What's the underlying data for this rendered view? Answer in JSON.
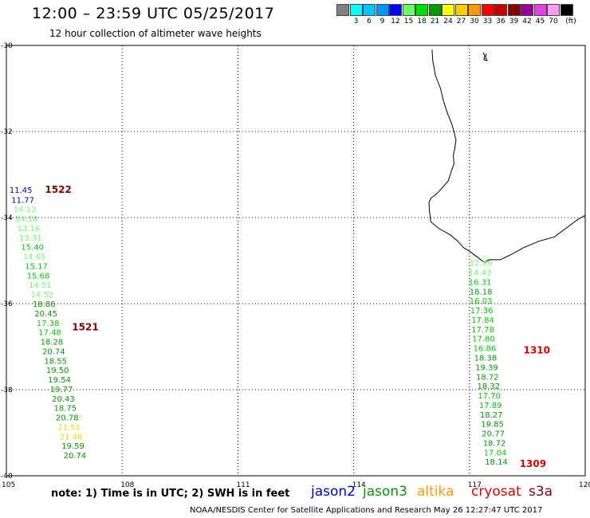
{
  "header": {
    "title": "12:00 – 23:59 UTC 05/25/2017",
    "subtitle": "12 hour collection of altimeter wave heights"
  },
  "legend": {
    "unit": "(ft)",
    "items": [
      {
        "label": "",
        "color": "#808080"
      },
      {
        "label": "3",
        "color": "#00ffff"
      },
      {
        "label": "6",
        "color": "#00c8ff"
      },
      {
        "label": "9",
        "color": "#0096ff"
      },
      {
        "label": "12",
        "color": "#0000ff"
      },
      {
        "label": "15",
        "color": "#66ff66"
      },
      {
        "label": "18",
        "color": "#00dd00"
      },
      {
        "label": "21",
        "color": "#009900"
      },
      {
        "label": "24",
        "color": "#ffff00"
      },
      {
        "label": "27",
        "color": "#ffcc00"
      },
      {
        "label": "30",
        "color": "#ff9900"
      },
      {
        "label": "33",
        "color": "#ff0000"
      },
      {
        "label": "36",
        "color": "#cc0000"
      },
      {
        "label": "39",
        "color": "#880000"
      },
      {
        "label": "42",
        "color": "#990099"
      },
      {
        "label": "45",
        "color": "#dd44dd"
      },
      {
        "label": "70",
        "color": "#ff99ff"
      },
      {
        "label": "",
        "color": "#000000"
      }
    ]
  },
  "axes": {
    "lon_labels": [
      "105",
      "108",
      "111",
      "114",
      "117",
      "120"
    ],
    "lat_labels": [
      "-30",
      "-32",
      "-34",
      "-36",
      "-38",
      "-40"
    ]
  },
  "tracks": [
    {
      "name": "west-track",
      "revs": [
        {
          "label": "1522",
          "lon": 106.0,
          "lat": -33.35,
          "color": "#880000"
        },
        {
          "label": "1521",
          "lon": 106.7,
          "lat": -36.55,
          "color": "#880000"
        }
      ],
      "points": [
        {
          "value": "11.45",
          "lon": 105.08,
          "lat": -33.35,
          "color": "#0000aa"
        },
        {
          "value": "11.77",
          "lon": 105.13,
          "lat": -33.58,
          "color": "#0000aa"
        },
        {
          "value": "14.13",
          "lon": 105.18,
          "lat": -33.8,
          "color": "#66ff66"
        },
        {
          "value": "14.18",
          "lon": 105.23,
          "lat": -34.02,
          "color": "#66ff66"
        },
        {
          "value": "13.16",
          "lon": 105.28,
          "lat": -34.24,
          "color": "#66ff66"
        },
        {
          "value": "13.31",
          "lon": 105.33,
          "lat": -34.46,
          "color": "#66ff66"
        },
        {
          "value": "15.40",
          "lon": 105.38,
          "lat": -34.68,
          "color": "#00cc00"
        },
        {
          "value": "14.65",
          "lon": 105.43,
          "lat": -34.9,
          "color": "#66ff66"
        },
        {
          "value": "15.17",
          "lon": 105.48,
          "lat": -35.12,
          "color": "#00cc00"
        },
        {
          "value": "15.68",
          "lon": 105.53,
          "lat": -35.34,
          "color": "#00cc00"
        },
        {
          "value": "14.51",
          "lon": 105.58,
          "lat": -35.56,
          "color": "#66ff66"
        },
        {
          "value": "14.52",
          "lon": 105.63,
          "lat": -35.78,
          "color": "#66ff66"
        },
        {
          "value": "18.86",
          "lon": 105.68,
          "lat": -36.0,
          "color": "#009900"
        },
        {
          "value": "20.45",
          "lon": 105.73,
          "lat": -36.22,
          "color": "#009900"
        },
        {
          "value": "17.38",
          "lon": 105.78,
          "lat": -36.44,
          "color": "#00cc00"
        },
        {
          "value": "17.48",
          "lon": 105.83,
          "lat": -36.66,
          "color": "#00cc00"
        },
        {
          "value": "18.28",
          "lon": 105.88,
          "lat": -36.88,
          "color": "#009900"
        },
        {
          "value": "20.74",
          "lon": 105.93,
          "lat": -37.1,
          "color": "#009900"
        },
        {
          "value": "18.55",
          "lon": 105.98,
          "lat": -37.32,
          "color": "#009900"
        },
        {
          "value": "19.50",
          "lon": 106.03,
          "lat": -37.54,
          "color": "#009900"
        },
        {
          "value": "19.54",
          "lon": 106.08,
          "lat": -37.76,
          "color": "#009900"
        },
        {
          "value": "19.77",
          "lon": 106.13,
          "lat": -37.98,
          "color": "#009900"
        },
        {
          "value": "20.43",
          "lon": 106.18,
          "lat": -38.2,
          "color": "#009900"
        },
        {
          "value": "18.75",
          "lon": 106.23,
          "lat": -38.42,
          "color": "#009900"
        },
        {
          "value": "20.78",
          "lon": 106.28,
          "lat": -38.64,
          "color": "#009900"
        },
        {
          "value": "21.51",
          "lon": 106.33,
          "lat": -38.86,
          "color": "#dddd00"
        },
        {
          "value": "21.46",
          "lon": 106.38,
          "lat": -39.08,
          "color": "#dddd00"
        },
        {
          "value": "19.59",
          "lon": 106.43,
          "lat": -39.3,
          "color": "#009900"
        },
        {
          "value": "20.74",
          "lon": 106.48,
          "lat": -39.52,
          "color": "#009900"
        }
      ]
    },
    {
      "name": "east-track",
      "revs": [
        {
          "label": "1310",
          "lon": 118.4,
          "lat": -37.08,
          "color": "#dd0000"
        },
        {
          "label": "1309",
          "lon": 118.3,
          "lat": -39.72,
          "color": "#dd0000"
        }
      ],
      "points": [
        {
          "value": "12.89",
          "lon": 117.0,
          "lat": -35.05,
          "color": "#66ff66"
        },
        {
          "value": "14.43",
          "lon": 116.98,
          "lat": -35.27,
          "color": "#66ff66"
        },
        {
          "value": "16.31",
          "lon": 116.98,
          "lat": -35.49,
          "color": "#00cc00"
        },
        {
          "value": "18.18",
          "lon": 117.0,
          "lat": -35.71,
          "color": "#009900"
        },
        {
          "value": "16.03",
          "lon": 117.0,
          "lat": -35.93,
          "color": "#00cc00"
        },
        {
          "value": "17.36",
          "lon": 117.02,
          "lat": -36.15,
          "color": "#00cc00"
        },
        {
          "value": "17.84",
          "lon": 117.05,
          "lat": -36.37,
          "color": "#00cc00"
        },
        {
          "value": "17.78",
          "lon": 117.05,
          "lat": -36.59,
          "color": "#00cc00"
        },
        {
          "value": "17.80",
          "lon": 117.07,
          "lat": -36.81,
          "color": "#00cc00"
        },
        {
          "value": "16.86",
          "lon": 117.1,
          "lat": -37.03,
          "color": "#00cc00"
        },
        {
          "value": "18.38",
          "lon": 117.12,
          "lat": -37.25,
          "color": "#009900"
        },
        {
          "value": "19.39",
          "lon": 117.15,
          "lat": -37.47,
          "color": "#009900"
        },
        {
          "value": "18.72",
          "lon": 117.17,
          "lat": -37.69,
          "color": "#009900"
        },
        {
          "value": "18.32",
          "lon": 117.2,
          "lat": -37.91,
          "color": "#009900"
        },
        {
          "value": "17.70",
          "lon": 117.22,
          "lat": -38.13,
          "color": "#00cc00"
        },
        {
          "value": "17.89",
          "lon": 117.25,
          "lat": -38.35,
          "color": "#00cc00"
        },
        {
          "value": "18.27",
          "lon": 117.27,
          "lat": -38.57,
          "color": "#009900"
        },
        {
          "value": "19.85",
          "lon": 117.3,
          "lat": -38.79,
          "color": "#009900"
        },
        {
          "value": "20.77",
          "lon": 117.32,
          "lat": -39.01,
          "color": "#009900"
        },
        {
          "value": "18.72",
          "lon": 117.35,
          "lat": -39.23,
          "color": "#009900"
        },
        {
          "value": "17.04",
          "lon": 117.37,
          "lat": -39.45,
          "color": "#00cc00"
        },
        {
          "value": "18.14",
          "lon": 117.4,
          "lat": -39.67,
          "color": "#009900"
        }
      ]
    }
  ],
  "coastline": [
    [
      116.03,
      -30.1
    ],
    [
      116.05,
      -30.35
    ],
    [
      116.12,
      -30.7
    ],
    [
      116.25,
      -31.0
    ],
    [
      116.33,
      -31.3
    ],
    [
      116.42,
      -31.55
    ],
    [
      116.53,
      -31.8
    ],
    [
      116.6,
      -32.0
    ],
    [
      116.65,
      -32.2
    ],
    [
      116.62,
      -32.4
    ],
    [
      116.58,
      -32.55
    ],
    [
      116.6,
      -32.75
    ],
    [
      116.52,
      -32.95
    ],
    [
      116.45,
      -33.15
    ],
    [
      116.15,
      -33.45
    ],
    [
      116.0,
      -33.55
    ],
    [
      115.95,
      -33.65
    ],
    [
      115.97,
      -33.9
    ],
    [
      116.0,
      -34.1
    ],
    [
      116.2,
      -34.25
    ],
    [
      116.5,
      -34.4
    ],
    [
      116.7,
      -34.55
    ],
    [
      116.85,
      -34.7
    ],
    [
      117.0,
      -34.78
    ],
    [
      117.25,
      -34.95
    ],
    [
      117.4,
      -35.05
    ],
    [
      117.5,
      -34.98
    ],
    [
      117.8,
      -34.98
    ],
    [
      118.1,
      -34.85
    ],
    [
      118.4,
      -34.7
    ],
    [
      118.8,
      -34.55
    ],
    [
      119.2,
      -34.45
    ],
    [
      119.5,
      -34.25
    ],
    [
      119.8,
      -34.05
    ],
    [
      120.0,
      -33.95
    ]
  ],
  "footer": {
    "note": "note: 1) Time is in UTC; 2) SWH is in feet",
    "satellites": [
      {
        "name": "jason2",
        "color": "#0000cc"
      },
      {
        "name": "jason3",
        "color": "#009900"
      },
      {
        "name": "altika",
        "color": "#ff9900"
      },
      {
        "name": "cryosat",
        "color": "#dd0000"
      },
      {
        "name": "s3a",
        "color": "#880000"
      }
    ],
    "credit": "NOAA/NESDIS Center for Satellite Applications and Research    May 26 12:27:47 UTC 2017"
  }
}
